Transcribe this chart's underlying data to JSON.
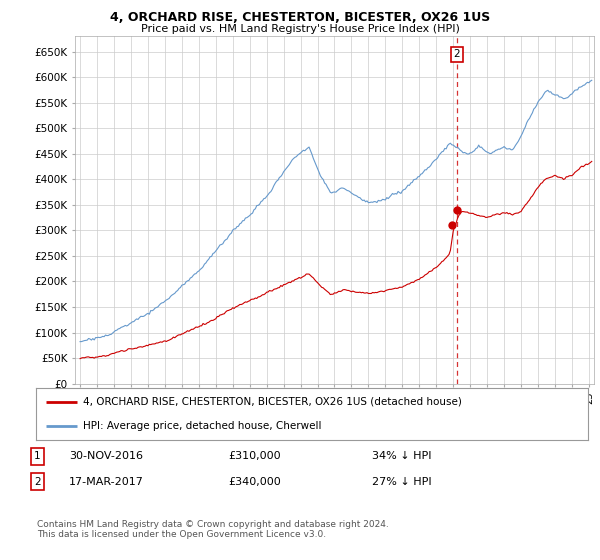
{
  "title": "4, ORCHARD RISE, CHESTERTON, BICESTER, OX26 1US",
  "subtitle": "Price paid vs. HM Land Registry's House Price Index (HPI)",
  "legend_line1": "4, ORCHARD RISE, CHESTERTON, BICESTER, OX26 1US (detached house)",
  "legend_line2": "HPI: Average price, detached house, Cherwell",
  "footer": "Contains HM Land Registry data © Crown copyright and database right 2024.\nThis data is licensed under the Open Government Licence v3.0.",
  "transaction1_date": "30-NOV-2016",
  "transaction1_price": "£310,000",
  "transaction1_hpi": "34% ↓ HPI",
  "transaction2_date": "17-MAR-2017",
  "transaction2_price": "£340,000",
  "transaction2_hpi": "27% ↓ HPI",
  "ylim": [
    0,
    680000
  ],
  "yticks": [
    0,
    50000,
    100000,
    150000,
    200000,
    250000,
    300000,
    350000,
    400000,
    450000,
    500000,
    550000,
    600000,
    650000
  ],
  "ytick_labels": [
    "£0",
    "£50K",
    "£100K",
    "£150K",
    "£200K",
    "£250K",
    "£300K",
    "£350K",
    "£400K",
    "£450K",
    "£500K",
    "£550K",
    "£600K",
    "£650K"
  ],
  "red_color": "#cc0000",
  "blue_color": "#6699cc",
  "background": "#ffffff",
  "grid_color": "#cccccc",
  "transaction1_x": 2016.92,
  "transaction1_y": 310000,
  "transaction2_x": 2017.22,
  "transaction2_y": 340000,
  "xmin": 1994.7,
  "xmax": 2025.3
}
